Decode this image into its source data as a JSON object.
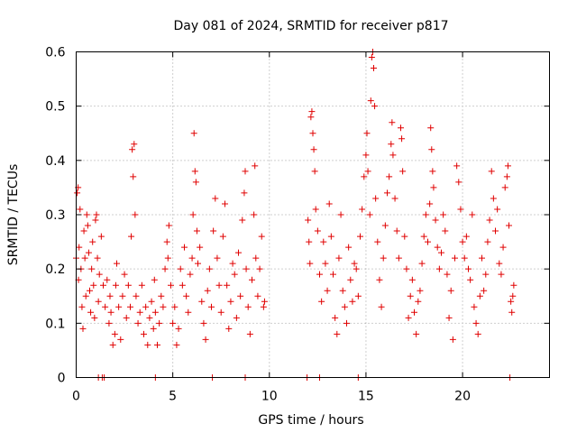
{
  "chart_data": {
    "type": "scatter",
    "title": "Day 081 of 2024, SRMTID for receiver p817",
    "xlabel": "GPS time / hours",
    "ylabel": "SRMTID / TECUs",
    "xlim": [
      0,
      24.5
    ],
    "ylim": [
      0,
      0.6
    ],
    "xticks": [
      0,
      5,
      10,
      15,
      20
    ],
    "xtick_labels": [
      "0",
      "5",
      "10",
      "15",
      "20"
    ],
    "yticks": [
      0,
      0.1,
      0.2,
      0.3,
      0.4,
      0.5,
      0.6
    ],
    "ytick_labels": [
      "0",
      "0.1",
      "0.2",
      "0.3",
      "0.4",
      "0.5",
      "0.6"
    ],
    "grid": true,
    "marker": "+",
    "color": "#e00000",
    "series": [
      {
        "name": "SRMTID",
        "points": [
          [
            0.0,
            0.22
          ],
          [
            0.05,
            0.34
          ],
          [
            0.1,
            0.35
          ],
          [
            0.12,
            0.18
          ],
          [
            0.15,
            0.24
          ],
          [
            0.2,
            0.31
          ],
          [
            0.25,
            0.2
          ],
          [
            0.3,
            0.13
          ],
          [
            0.35,
            0.09
          ],
          [
            0.4,
            0.27
          ],
          [
            0.45,
            0.22
          ],
          [
            0.5,
            0.15
          ],
          [
            0.55,
            0.3
          ],
          [
            0.6,
            0.28
          ],
          [
            0.65,
            0.23
          ],
          [
            0.7,
            0.16
          ],
          [
            0.75,
            0.12
          ],
          [
            0.8,
            0.2
          ],
          [
            0.85,
            0.25
          ],
          [
            0.9,
            0.17
          ],
          [
            0.95,
            0.11
          ],
          [
            1.0,
            0.29
          ],
          [
            1.05,
            0.3
          ],
          [
            1.1,
            0.22
          ],
          [
            1.15,
            0.14
          ],
          [
            1.2,
            0.19
          ],
          [
            1.3,
            0.26
          ],
          [
            1.4,
            0.17
          ],
          [
            1.5,
            0.13
          ],
          [
            1.6,
            0.18
          ],
          [
            1.7,
            0.1
          ],
          [
            1.75,
            0.15
          ],
          [
            1.8,
            0.12
          ],
          [
            1.9,
            0.06
          ],
          [
            2.0,
            0.08
          ],
          [
            2.05,
            0.17
          ],
          [
            2.1,
            0.21
          ],
          [
            2.2,
            0.13
          ],
          [
            2.3,
            0.07
          ],
          [
            2.4,
            0.15
          ],
          [
            2.5,
            0.19
          ],
          [
            2.6,
            0.11
          ],
          [
            2.7,
            0.17
          ],
          [
            2.8,
            0.13
          ],
          [
            2.85,
            0.26
          ],
          [
            2.9,
            0.42
          ],
          [
            2.95,
            0.37
          ],
          [
            3.0,
            0.43
          ],
          [
            3.05,
            0.3
          ],
          [
            3.1,
            0.15
          ],
          [
            3.2,
            0.1
          ],
          [
            3.3,
            0.12
          ],
          [
            3.4,
            0.17
          ],
          [
            3.5,
            0.08
          ],
          [
            3.6,
            0.13
          ],
          [
            3.7,
            0.06
          ],
          [
            3.8,
            0.11
          ],
          [
            3.9,
            0.14
          ],
          [
            4.0,
            0.09
          ],
          [
            4.05,
            0.18
          ],
          [
            4.1,
            0.12
          ],
          [
            4.2,
            0.06
          ],
          [
            4.3,
            0.1
          ],
          [
            4.4,
            0.15
          ],
          [
            4.5,
            0.13
          ],
          [
            4.6,
            0.2
          ],
          [
            4.7,
            0.25
          ],
          [
            4.75,
            0.22
          ],
          [
            4.8,
            0.28
          ],
          [
            4.9,
            0.17
          ],
          [
            5.0,
            0.1
          ],
          [
            5.1,
            0.13
          ],
          [
            5.2,
            0.06
          ],
          [
            5.3,
            0.09
          ],
          [
            5.4,
            0.2
          ],
          [
            5.5,
            0.17
          ],
          [
            5.6,
            0.24
          ],
          [
            5.7,
            0.15
          ],
          [
            5.8,
            0.12
          ],
          [
            5.9,
            0.19
          ],
          [
            6.0,
            0.22
          ],
          [
            6.05,
            0.3
          ],
          [
            6.1,
            0.45
          ],
          [
            6.15,
            0.38
          ],
          [
            6.2,
            0.36
          ],
          [
            6.25,
            0.27
          ],
          [
            6.3,
            0.21
          ],
          [
            6.4,
            0.24
          ],
          [
            6.5,
            0.14
          ],
          [
            6.6,
            0.1
          ],
          [
            6.7,
            0.07
          ],
          [
            6.8,
            0.16
          ],
          [
            6.9,
            0.2
          ],
          [
            7.0,
            0.13
          ],
          [
            7.1,
            0.27
          ],
          [
            7.2,
            0.33
          ],
          [
            7.3,
            0.22
          ],
          [
            7.4,
            0.17
          ],
          [
            7.5,
            0.12
          ],
          [
            7.6,
            0.26
          ],
          [
            7.7,
            0.32
          ],
          [
            7.8,
            0.17
          ],
          [
            7.9,
            0.09
          ],
          [
            8.0,
            0.14
          ],
          [
            8.1,
            0.21
          ],
          [
            8.2,
            0.19
          ],
          [
            8.3,
            0.11
          ],
          [
            8.4,
            0.23
          ],
          [
            8.5,
            0.15
          ],
          [
            8.6,
            0.29
          ],
          [
            8.7,
            0.34
          ],
          [
            8.75,
            0.38
          ],
          [
            8.8,
            0.2
          ],
          [
            8.9,
            0.13
          ],
          [
            9.0,
            0.08
          ],
          [
            9.1,
            0.18
          ],
          [
            9.2,
            0.3
          ],
          [
            9.25,
            0.39
          ],
          [
            9.3,
            0.22
          ],
          [
            9.4,
            0.15
          ],
          [
            9.5,
            0.2
          ],
          [
            9.6,
            0.26
          ],
          [
            9.7,
            0.13
          ],
          [
            9.75,
            0.14
          ],
          [
            12.0,
            0.29
          ],
          [
            12.05,
            0.25
          ],
          [
            12.1,
            0.21
          ],
          [
            12.15,
            0.48
          ],
          [
            12.2,
            0.49
          ],
          [
            12.25,
            0.45
          ],
          [
            12.3,
            0.42
          ],
          [
            12.35,
            0.38
          ],
          [
            12.4,
            0.31
          ],
          [
            12.5,
            0.27
          ],
          [
            12.6,
            0.19
          ],
          [
            12.7,
            0.14
          ],
          [
            12.8,
            0.25
          ],
          [
            12.9,
            0.21
          ],
          [
            13.0,
            0.16
          ],
          [
            13.1,
            0.32
          ],
          [
            13.2,
            0.26
          ],
          [
            13.3,
            0.19
          ],
          [
            13.4,
            0.11
          ],
          [
            13.5,
            0.08
          ],
          [
            13.6,
            0.22
          ],
          [
            13.7,
            0.3
          ],
          [
            13.8,
            0.16
          ],
          [
            13.9,
            0.13
          ],
          [
            14.0,
            0.1
          ],
          [
            14.1,
            0.24
          ],
          [
            14.2,
            0.18
          ],
          [
            14.3,
            0.14
          ],
          [
            14.4,
            0.21
          ],
          [
            14.5,
            0.2
          ],
          [
            14.6,
            0.15
          ],
          [
            14.7,
            0.26
          ],
          [
            14.8,
            0.31
          ],
          [
            14.9,
            0.37
          ],
          [
            15.0,
            0.41
          ],
          [
            15.05,
            0.45
          ],
          [
            15.1,
            0.38
          ],
          [
            15.2,
            0.3
          ],
          [
            15.25,
            0.51
          ],
          [
            15.3,
            0.59
          ],
          [
            15.35,
            0.6
          ],
          [
            15.4,
            0.57
          ],
          [
            15.45,
            0.5
          ],
          [
            15.5,
            0.33
          ],
          [
            15.6,
            0.25
          ],
          [
            15.7,
            0.18
          ],
          [
            15.8,
            0.13
          ],
          [
            15.9,
            0.22
          ],
          [
            16.0,
            0.28
          ],
          [
            16.1,
            0.34
          ],
          [
            16.2,
            0.37
          ],
          [
            16.3,
            0.43
          ],
          [
            16.35,
            0.47
          ],
          [
            16.4,
            0.41
          ],
          [
            16.5,
            0.33
          ],
          [
            16.6,
            0.27
          ],
          [
            16.7,
            0.22
          ],
          [
            16.8,
            0.46
          ],
          [
            16.85,
            0.44
          ],
          [
            16.9,
            0.38
          ],
          [
            17.0,
            0.26
          ],
          [
            17.1,
            0.2
          ],
          [
            17.2,
            0.11
          ],
          [
            17.3,
            0.15
          ],
          [
            17.4,
            0.18
          ],
          [
            17.5,
            0.12
          ],
          [
            17.6,
            0.08
          ],
          [
            17.7,
            0.14
          ],
          [
            17.8,
            0.16
          ],
          [
            17.9,
            0.21
          ],
          [
            18.0,
            0.26
          ],
          [
            18.1,
            0.3
          ],
          [
            18.2,
            0.25
          ],
          [
            18.3,
            0.32
          ],
          [
            18.35,
            0.46
          ],
          [
            18.4,
            0.42
          ],
          [
            18.45,
            0.38
          ],
          [
            18.5,
            0.35
          ],
          [
            18.6,
            0.29
          ],
          [
            18.7,
            0.24
          ],
          [
            18.8,
            0.2
          ],
          [
            18.9,
            0.23
          ],
          [
            19.0,
            0.3
          ],
          [
            19.1,
            0.27
          ],
          [
            19.2,
            0.19
          ],
          [
            19.3,
            0.11
          ],
          [
            19.4,
            0.16
          ],
          [
            19.5,
            0.07
          ],
          [
            19.6,
            0.22
          ],
          [
            19.7,
            0.39
          ],
          [
            19.8,
            0.36
          ],
          [
            19.9,
            0.31
          ],
          [
            20.0,
            0.25
          ],
          [
            20.1,
            0.22
          ],
          [
            20.2,
            0.26
          ],
          [
            20.3,
            0.2
          ],
          [
            20.4,
            0.18
          ],
          [
            20.5,
            0.3
          ],
          [
            20.6,
            0.13
          ],
          [
            20.7,
            0.1
          ],
          [
            20.8,
            0.08
          ],
          [
            20.9,
            0.15
          ],
          [
            21.0,
            0.22
          ],
          [
            21.1,
            0.16
          ],
          [
            21.2,
            0.19
          ],
          [
            21.3,
            0.25
          ],
          [
            21.4,
            0.29
          ],
          [
            21.5,
            0.38
          ],
          [
            21.6,
            0.33
          ],
          [
            21.7,
            0.27
          ],
          [
            21.8,
            0.31
          ],
          [
            21.9,
            0.21
          ],
          [
            22.0,
            0.19
          ],
          [
            22.1,
            0.24
          ],
          [
            22.2,
            0.35
          ],
          [
            22.3,
            0.37
          ],
          [
            22.35,
            0.39
          ],
          [
            22.4,
            0.28
          ],
          [
            22.5,
            0.14
          ],
          [
            22.55,
            0.12
          ],
          [
            22.6,
            0.15
          ],
          [
            22.65,
            0.17
          ],
          [
            1.15,
            0.0
          ],
          [
            1.35,
            0.0
          ],
          [
            1.45,
            0.0
          ],
          [
            4.1,
            0.0
          ],
          [
            7.05,
            0.0
          ],
          [
            8.75,
            0.0
          ],
          [
            11.95,
            0.0
          ],
          [
            12.6,
            0.0
          ],
          [
            14.6,
            0.0
          ],
          [
            22.45,
            0.0
          ]
        ]
      }
    ]
  }
}
